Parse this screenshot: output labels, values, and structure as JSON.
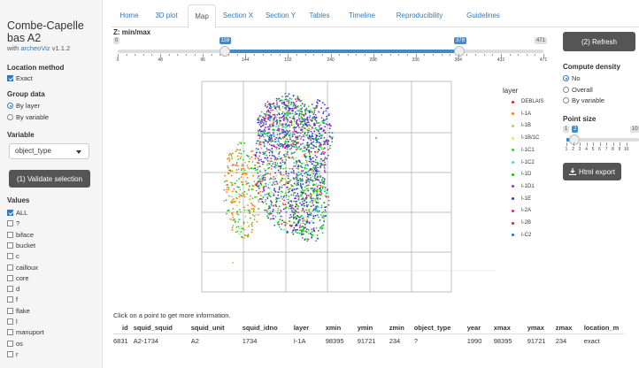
{
  "sidebar": {
    "title": "Combe-Capelle bas A2",
    "subtitle_prefix": "with ",
    "subtitle_link": "archeoViz",
    "subtitle_version": " v1.1.2",
    "location_method_label": "Location method",
    "location_exact": "Exact",
    "group_data_label": "Group data",
    "group_by_layer": "By layer",
    "group_by_variable": "By variable",
    "variable_label": "Variable",
    "variable_value": "object_type",
    "validate_label": "(1) Validate selection",
    "values_label": "Values",
    "values": [
      {
        "label": "ALL",
        "checked": true
      },
      {
        "label": "?",
        "checked": false
      },
      {
        "label": "biface",
        "checked": false
      },
      {
        "label": "bucket",
        "checked": false
      },
      {
        "label": "c",
        "checked": false
      },
      {
        "label": "cailloux",
        "checked": false
      },
      {
        "label": "core",
        "checked": false
      },
      {
        "label": "d",
        "checked": false
      },
      {
        "label": "f",
        "checked": false
      },
      {
        "label": "flake",
        "checked": false
      },
      {
        "label": "l",
        "checked": false
      },
      {
        "label": "manuport",
        "checked": false
      },
      {
        "label": "os",
        "checked": false
      },
      {
        "label": "r",
        "checked": false
      }
    ]
  },
  "tabs": [
    "Home",
    "3D plot",
    "Map",
    "Section X",
    "Section Y",
    "Tables",
    "Timeline",
    "Reproducibility",
    "Guidelines"
  ],
  "active_tab": "Map",
  "zslider": {
    "label": "Z: min/max",
    "min": 0,
    "max": 471,
    "low": 118,
    "high": 378,
    "min_label": "0",
    "max_label": "471",
    "low_label": "118",
    "high_label": "378",
    "ticks": [
      "0",
      "48",
      "96",
      "144",
      "192",
      "240",
      "288",
      "336",
      "384",
      "432",
      "471"
    ]
  },
  "refresh_label": "(2) Refresh",
  "compute_density": {
    "label": "Compute density",
    "options": [
      {
        "label": "No",
        "checked": true
      },
      {
        "label": "Overall",
        "checked": false
      },
      {
        "label": "By variable",
        "checked": false
      }
    ]
  },
  "point_size": {
    "label": "Point size",
    "min": 1,
    "max": 10,
    "value": 2,
    "min_label": "1",
    "max_label": "10",
    "value_label": "2",
    "ticks": [
      "1",
      "2",
      "3",
      "4",
      "5",
      "6",
      "7",
      "8",
      "9",
      "10"
    ]
  },
  "html_export_label": "Html export",
  "legend": {
    "title": "layer",
    "items": [
      {
        "name": "DEBLAIS",
        "color": "#e41a1c"
      },
      {
        "name": "I-1A",
        "color": "#ff7f00"
      },
      {
        "name": "I-1B",
        "color": "#a6d96a"
      },
      {
        "name": "I-1B/1C",
        "color": "#e6e64c"
      },
      {
        "name": "I-1C1",
        "color": "#33cc33"
      },
      {
        "name": "I-1C2",
        "color": "#40e0d0"
      },
      {
        "name": "I-1D",
        "color": "#00cc00"
      },
      {
        "name": "I-1D1",
        "color": "#9933cc"
      },
      {
        "name": "I-1E",
        "color": "#3333cc"
      },
      {
        "name": "I-2A",
        "color": "#e0218a"
      },
      {
        "name": "I-2B",
        "color": "#d62728"
      },
      {
        "name": "I-C2",
        "color": "#1f77b4"
      }
    ]
  },
  "info_text": "Click on a point to get more information.",
  "table": {
    "headers": [
      "id",
      "squid_squid",
      "squid_unit",
      "squid_idno",
      "layer",
      "xmin",
      "ymin",
      "zmin",
      "object_type",
      "year",
      "xmax",
      "ymax",
      "zmax",
      "location_m"
    ],
    "rows": [
      [
        "6831",
        "A2-1734",
        "A2",
        "1734",
        "I-1A",
        "98395",
        "91721",
        "234",
        "?",
        "1990",
        "98395",
        "91721",
        "234",
        "exact"
      ]
    ]
  },
  "icons": {
    "export": "download-icon",
    "caret": "chevron-down-icon"
  }
}
